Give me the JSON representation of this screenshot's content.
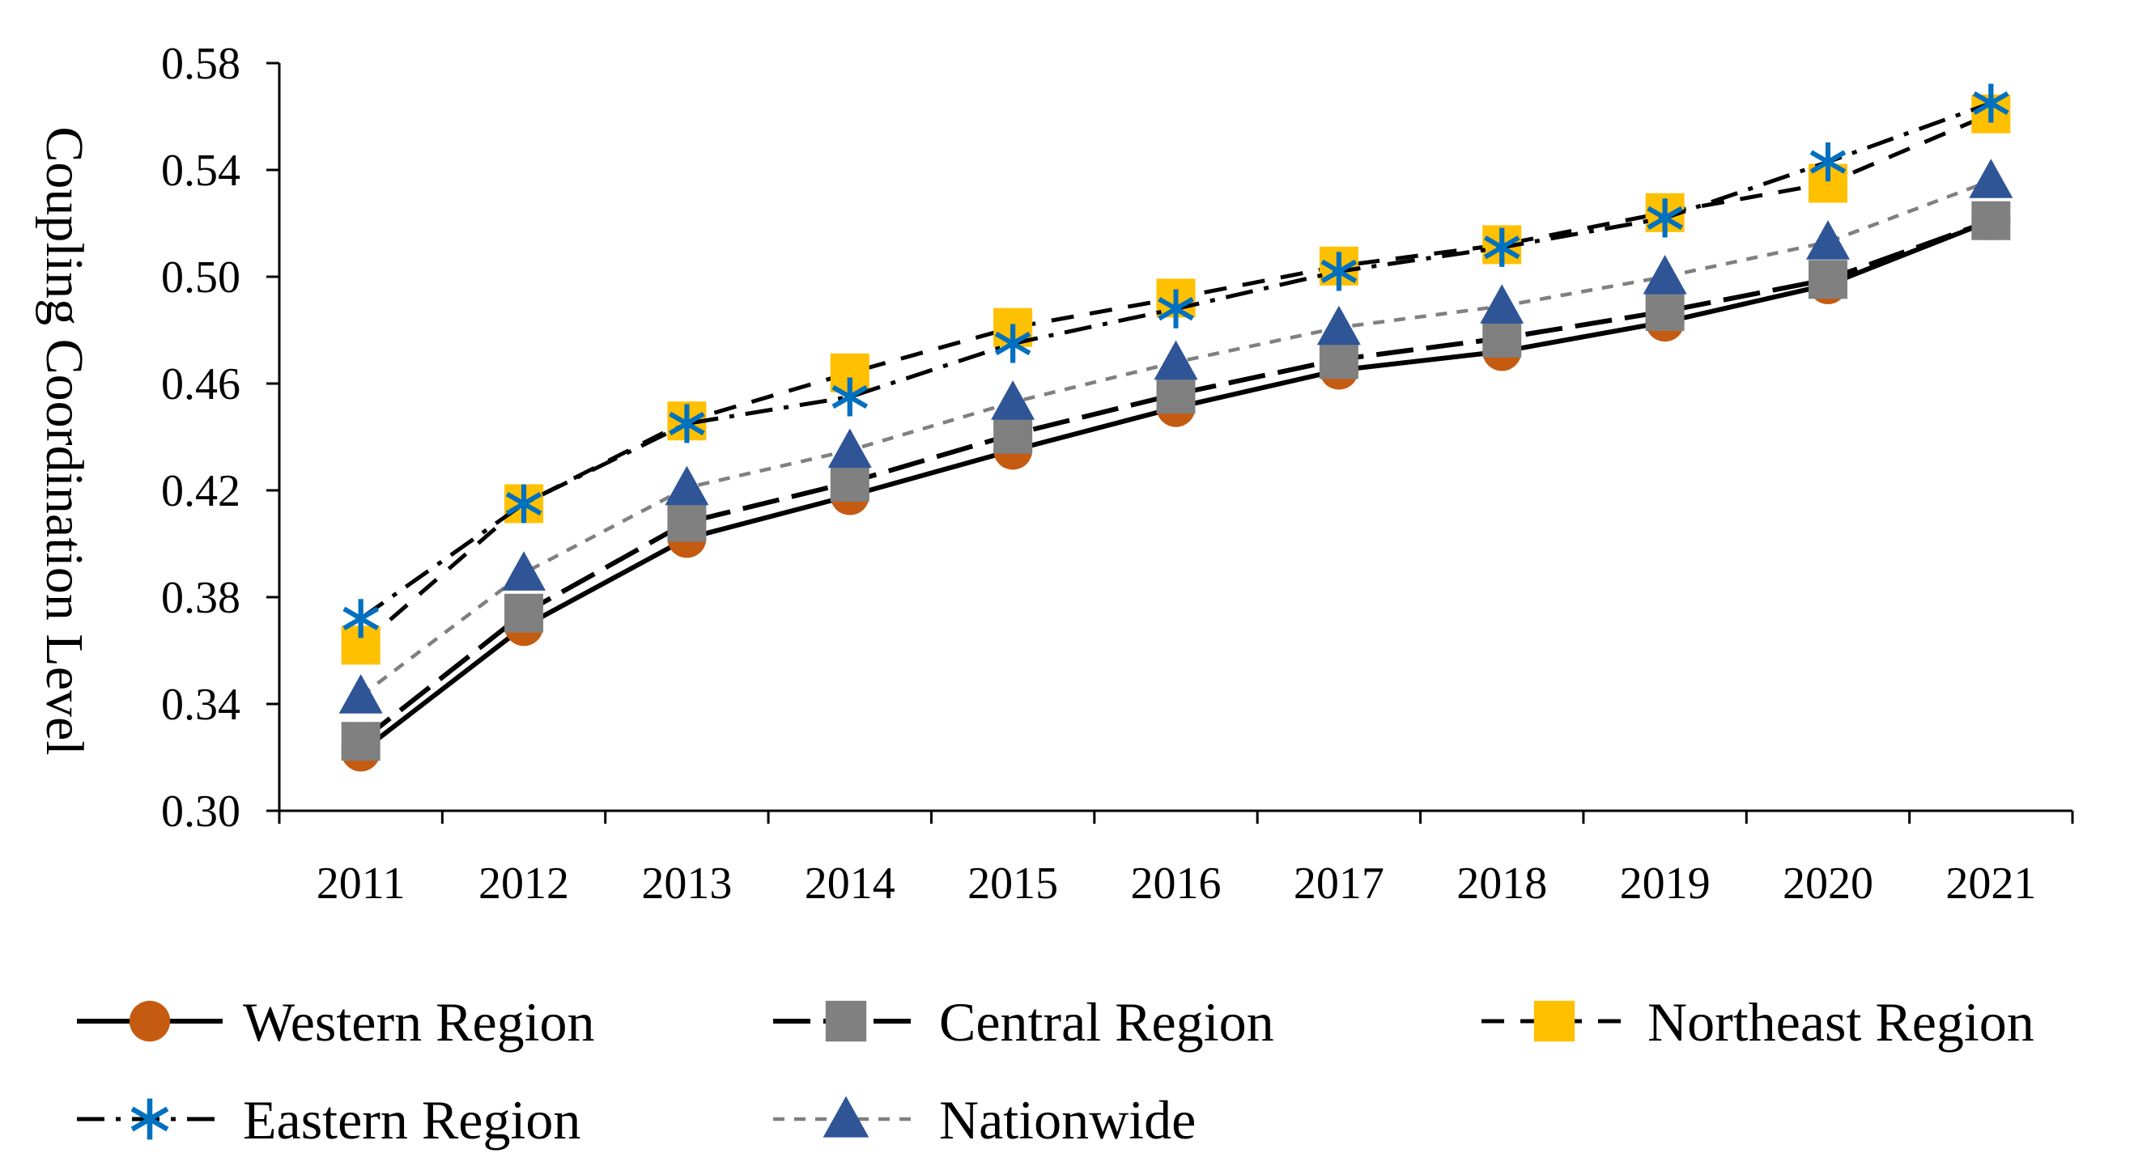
{
  "chart_data": {
    "type": "line",
    "title": "",
    "xlabel": "",
    "ylabel": "Coupling Coordination Level",
    "categories": [
      "2011",
      "2012",
      "2013",
      "2014",
      "2015",
      "2016",
      "2017",
      "2018",
      "2019",
      "2020",
      "2021"
    ],
    "ylim": [
      0.3,
      0.58
    ],
    "yticks": [
      "0.30",
      "0.34",
      "0.38",
      "0.42",
      "0.46",
      "0.50",
      "0.54",
      "0.58"
    ],
    "grid": false,
    "legend_position": "bottom",
    "series": [
      {
        "name": "Western Region",
        "marker": "circle",
        "color": "#C55A11",
        "line_color": "#000000",
        "dash": "solid",
        "values": [
          0.322,
          0.369,
          0.402,
          0.418,
          0.435,
          0.451,
          0.465,
          0.472,
          0.483,
          0.497,
          0.521
        ]
      },
      {
        "name": "Central Region",
        "marker": "square",
        "color": "#808080",
        "line_color": "#000000",
        "dash": "longdash",
        "values": [
          0.326,
          0.374,
          0.408,
          0.423,
          0.441,
          0.456,
          0.469,
          0.477,
          0.487,
          0.499,
          0.521
        ]
      },
      {
        "name": "Northeast Region",
        "marker": "square",
        "color": "#FFC000",
        "line_color": "#000000",
        "dash": "dash",
        "values": [
          0.362,
          0.415,
          0.446,
          0.464,
          0.481,
          0.492,
          0.504,
          0.512,
          0.524,
          0.535,
          0.561
        ]
      },
      {
        "name": "Eastern Region",
        "marker": "asterisk",
        "color": "#0070C0",
        "line_color": "#000000",
        "dash": "dashdot",
        "values": [
          0.372,
          0.415,
          0.445,
          0.455,
          0.475,
          0.488,
          0.502,
          0.511,
          0.522,
          0.543,
          0.565
        ]
      },
      {
        "name": "Nationwide",
        "marker": "triangle",
        "color": "#2F5597",
        "line_color": "#808080",
        "dash": "dot",
        "values": [
          0.343,
          0.389,
          0.421,
          0.435,
          0.453,
          0.468,
          0.481,
          0.489,
          0.5,
          0.513,
          0.536
        ]
      }
    ]
  }
}
